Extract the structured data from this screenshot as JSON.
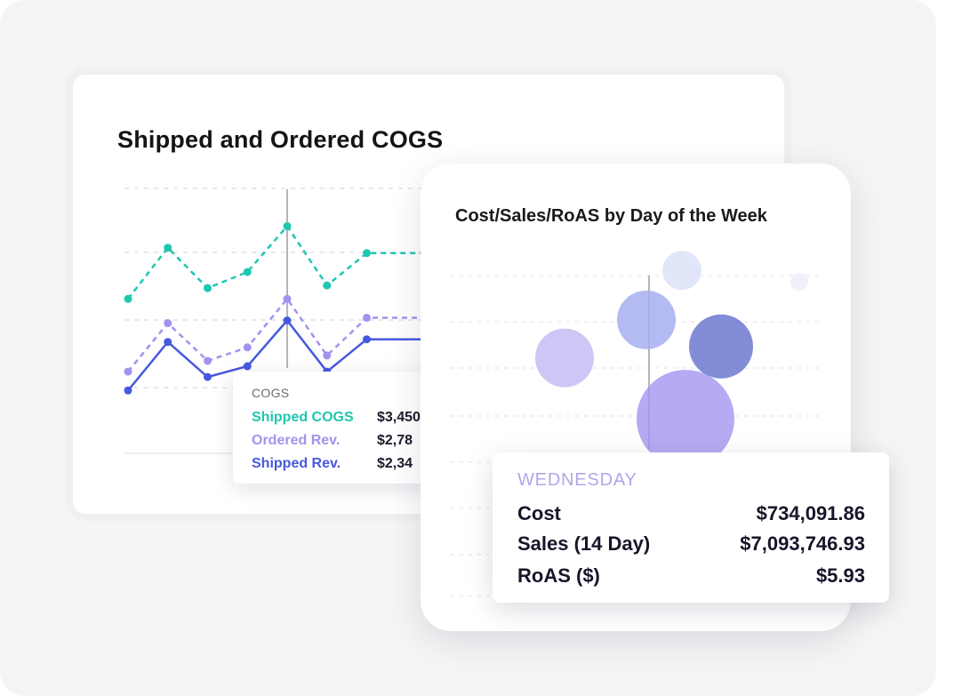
{
  "colors": {
    "shipped_cogs": "#1ec7ae",
    "ordered_rev": "#a392ee",
    "shipped_rev": "#4758e0"
  },
  "cogs_card": {
    "title": "Shipped and Ordered COGS",
    "tooltip": {
      "heading": "COGS",
      "rows": [
        {
          "label": "Shipped COGS",
          "value": "$3,450",
          "color": "#1ec7ae"
        },
        {
          "label": "Ordered Rev.",
          "value": "$2,78",
          "color": "#a392ee"
        },
        {
          "label": "Shipped Rev.",
          "value": "$2,34",
          "color": "#4758e0"
        }
      ]
    }
  },
  "bubble_card": {
    "title": "Cost/Sales/RoAS by Day of the Week",
    "tooltip": {
      "heading": "WEDNESDAY",
      "rows": [
        {
          "label": "Cost",
          "value": "$734,091.86"
        },
        {
          "label": "Sales (14 Day)",
          "value": "$7,093,746.93"
        },
        {
          "label": "RoAS ($)",
          "value": "$5.93"
        }
      ]
    }
  },
  "chart_data": [
    {
      "type": "line",
      "title": "Shipped and Ordered COGS",
      "x": [
        1,
        2,
        3,
        4,
        5,
        6,
        7,
        8,
        9
      ],
      "ylim": [
        0,
        100
      ],
      "grid": true,
      "series": [
        {
          "name": "Shipped COGS",
          "style": "dashed",
          "color": "#1ec7ae",
          "values": [
            58,
            77,
            62,
            68,
            85,
            63,
            75,
            75,
            75
          ]
        },
        {
          "name": "Ordered Rev.",
          "style": "dashed",
          "color": "#a392ee",
          "values": [
            31,
            49,
            35,
            40,
            58,
            37,
            51,
            51,
            51
          ]
        },
        {
          "name": "Shipped Rev.",
          "style": "solid",
          "color": "#4758e0",
          "values": [
            24,
            42,
            29,
            33,
            50,
            31,
            43,
            43,
            43
          ]
        }
      ]
    },
    {
      "type": "scatter",
      "title": "Cost/Sales/RoAS by Day of the Week",
      "xlim": [
        0,
        100
      ],
      "ylim": [
        0,
        100
      ],
      "grid": true,
      "points": [
        {
          "x": 27,
          "y": 62,
          "size": 33,
          "color": "#c9c0f4",
          "opacity": 0.9
        },
        {
          "x": 50,
          "y": 72,
          "size": 33,
          "color": "#a7aff0",
          "opacity": 0.85
        },
        {
          "x": 60,
          "y": 85,
          "size": 22,
          "color": "#dfe3f8",
          "opacity": 0.9
        },
        {
          "x": 71,
          "y": 65,
          "size": 36,
          "color": "#5a66c8",
          "opacity": 0.75
        },
        {
          "x": 61,
          "y": 46,
          "size": 55,
          "color": "#a495f0",
          "opacity": 0.8
        },
        {
          "x": 93,
          "y": 82,
          "size": 10,
          "color": "#eeeef8",
          "opacity": 0.9
        },
        {
          "x": 20,
          "y": 14,
          "size": 42,
          "color": "#a9aeea",
          "opacity": 0.9
        }
      ]
    }
  ]
}
